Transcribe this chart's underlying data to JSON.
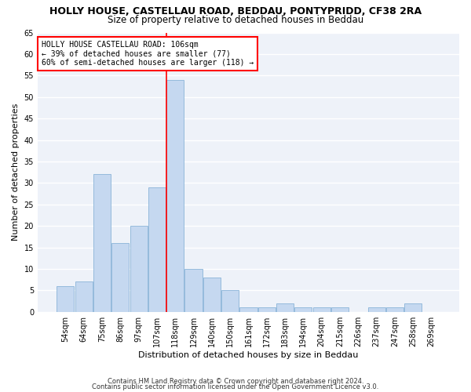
{
  "title1": "HOLLY HOUSE, CASTELLAU ROAD, BEDDAU, PONTYPRIDD, CF38 2RA",
  "title2": "Size of property relative to detached houses in Beddau",
  "xlabel": "Distribution of detached houses by size in Beddau",
  "ylabel": "Number of detached properties",
  "categories": [
    "54sqm",
    "64sqm",
    "75sqm",
    "86sqm",
    "97sqm",
    "107sqm",
    "118sqm",
    "129sqm",
    "140sqm",
    "150sqm",
    "161sqm",
    "172sqm",
    "183sqm",
    "194sqm",
    "204sqm",
    "215sqm",
    "226sqm",
    "237sqm",
    "247sqm",
    "258sqm",
    "269sqm"
  ],
  "values": [
    6,
    7,
    32,
    16,
    20,
    29,
    54,
    10,
    8,
    5,
    1,
    1,
    2,
    1,
    1,
    1,
    0,
    1,
    1,
    2,
    0
  ],
  "bar_color": "#c5d8f0",
  "bar_edgecolor": "#8ab4d8",
  "red_line_x": 5.5,
  "annotation_line1": "HOLLY HOUSE CASTELLAU ROAD: 106sqm",
  "annotation_line2": "← 39% of detached houses are smaller (77)",
  "annotation_line3": "60% of semi-detached houses are larger (118) →",
  "annotation_box_color": "white",
  "annotation_box_edgecolor": "red",
  "vline_color": "red",
  "ylim": [
    0,
    65
  ],
  "yticks": [
    0,
    5,
    10,
    15,
    20,
    25,
    30,
    35,
    40,
    45,
    50,
    55,
    60,
    65
  ],
  "footer1": "Contains HM Land Registry data © Crown copyright and database right 2024.",
  "footer2": "Contains public sector information licensed under the Open Government Licence v3.0.",
  "background_color": "#eef2f9",
  "grid_color": "white",
  "title1_fontsize": 9,
  "title2_fontsize": 8.5,
  "tick_fontsize": 7,
  "ylabel_fontsize": 8,
  "xlabel_fontsize": 8,
  "annotation_fontsize": 7,
  "footer_fontsize": 6
}
